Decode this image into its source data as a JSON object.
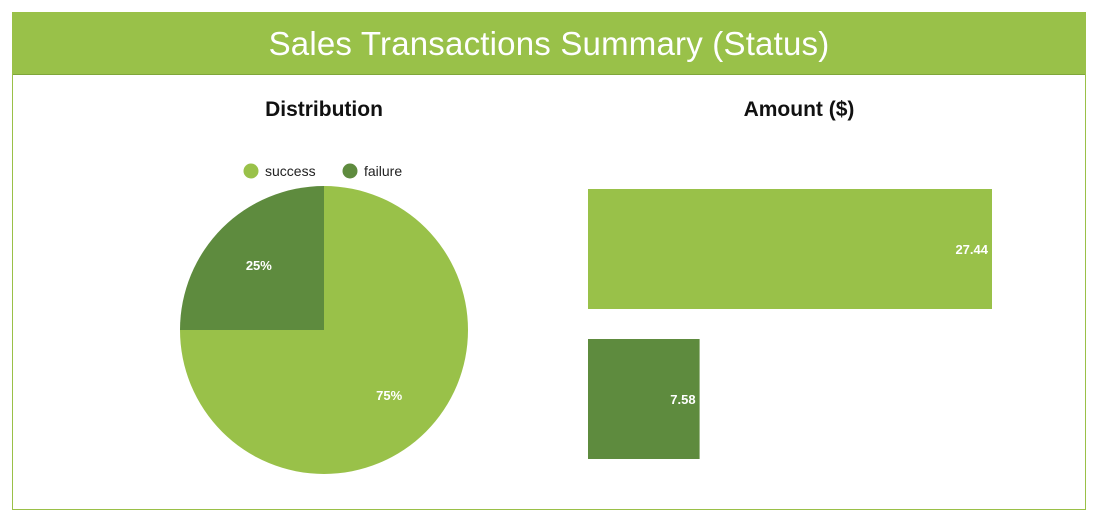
{
  "header": {
    "title": "Sales Transactions Summary (Status)"
  },
  "colors": {
    "banner": "#99c149",
    "success": "#99c149",
    "failure": "#5e8b3e",
    "label": "#ffffff"
  },
  "chart_data": [
    {
      "type": "pie",
      "title": "Distribution",
      "legend": "top",
      "slices": [
        {
          "name": "success",
          "value": 75,
          "label": "75%"
        },
        {
          "name": "failure",
          "value": 25,
          "label": "25%"
        }
      ]
    },
    {
      "type": "bar",
      "orientation": "horizontal",
      "title": "Amount ($)",
      "categories": [
        "success",
        "failure"
      ],
      "values": [
        27.44,
        7.58
      ],
      "data_labels": [
        "27.44",
        "7.58"
      ],
      "xlim": [
        0,
        27.44
      ],
      "grid": false,
      "axes_visible": false
    }
  ]
}
